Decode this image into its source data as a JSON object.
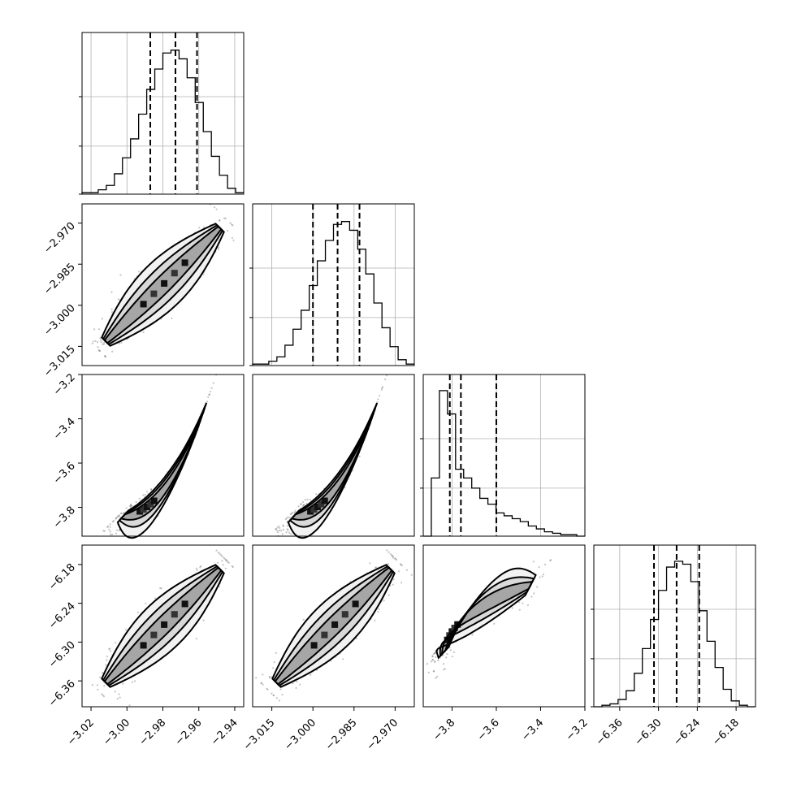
{
  "chart_data": {
    "type": "scatter",
    "kind": "corner-plot",
    "grid": true,
    "parameters": [
      {
        "range": [
          -3.025,
          -2.935
        ],
        "ticks": [
          "−3.02",
          "−3.00",
          "−2.98",
          "−2.96",
          "−2.94"
        ],
        "tick_values": [
          -3.02,
          -3.0,
          -2.98,
          -2.96,
          -2.94
        ],
        "quantiles": [
          -2.987,
          -2.973,
          -2.961
        ],
        "hist_edges_start": -3.025,
        "hist_bin_width": 0.0045,
        "hist_counts": [
          0.01,
          0.01,
          0.03,
          0.06,
          0.14,
          0.25,
          0.38,
          0.55,
          0.72,
          0.86,
          0.97,
          0.99,
          0.93,
          0.8,
          0.63,
          0.43,
          0.26,
          0.13,
          0.04,
          0.01
        ]
      },
      {
        "range": [
          -3.022,
          -2.963
        ],
        "ticks": [
          "−3.015",
          "−3.000",
          "−2.985",
          "−2.970"
        ],
        "tick_values": [
          -3.015,
          -3.0,
          -2.985,
          -2.97
        ],
        "quantiles": [
          -3.0,
          -2.991,
          -2.983
        ],
        "hist_edges_start": -3.022,
        "hist_bin_width": 0.00295,
        "hist_counts": [
          0.01,
          0.01,
          0.03,
          0.06,
          0.14,
          0.25,
          0.38,
          0.55,
          0.72,
          0.86,
          0.97,
          0.99,
          0.93,
          0.8,
          0.63,
          0.43,
          0.26,
          0.13,
          0.04,
          0.01
        ]
      },
      {
        "range": [
          -3.93,
          -3.2
        ],
        "ticks": [
          "−3.8",
          "−3.6",
          "−3.4",
          "−3.2"
        ],
        "tick_values": [
          -3.8,
          -3.6,
          -3.4,
          -3.2
        ],
        "quantiles": [
          -3.81,
          -3.76,
          -3.6
        ],
        "hist_edges_start": -3.93,
        "hist_bin_width": 0.0365,
        "hist_counts": [
          0.0,
          0.4,
          1.0,
          0.84,
          0.46,
          0.4,
          0.33,
          0.26,
          0.22,
          0.16,
          0.14,
          0.12,
          0.1,
          0.07,
          0.05,
          0.03,
          0.02,
          0.01,
          0.01,
          0.0
        ]
      },
      {
        "range": [
          -6.4,
          -6.15
        ],
        "ticks": [
          "−6.36",
          "−6.30",
          "−6.24",
          "−6.18"
        ],
        "tick_values": [
          -6.36,
          -6.3,
          -6.24,
          -6.18
        ],
        "quantiles": [
          -6.307,
          -6.272,
          -6.237
        ],
        "hist_edges_start": -6.4,
        "hist_bin_width": 0.0125,
        "hist_counts": [
          0.0,
          0.01,
          0.02,
          0.05,
          0.11,
          0.23,
          0.4,
          0.6,
          0.8,
          0.96,
          1.0,
          0.98,
          0.86,
          0.66,
          0.45,
          0.27,
          0.12,
          0.04,
          0.01,
          0.0
        ]
      }
    ],
    "pairs": [
      {
        "row": 1,
        "col": 0,
        "shape": "linear",
        "contours": 3
      },
      {
        "row": 2,
        "col": 0,
        "shape": "curved",
        "contours": 3
      },
      {
        "row": 2,
        "col": 1,
        "shape": "curved",
        "contours": 3
      },
      {
        "row": 3,
        "col": 0,
        "shape": "linear",
        "contours": 3
      },
      {
        "row": 3,
        "col": 1,
        "shape": "linear",
        "contours": 3
      },
      {
        "row": 3,
        "col": 2,
        "shape": "banana",
        "contours": 3
      }
    ]
  }
}
